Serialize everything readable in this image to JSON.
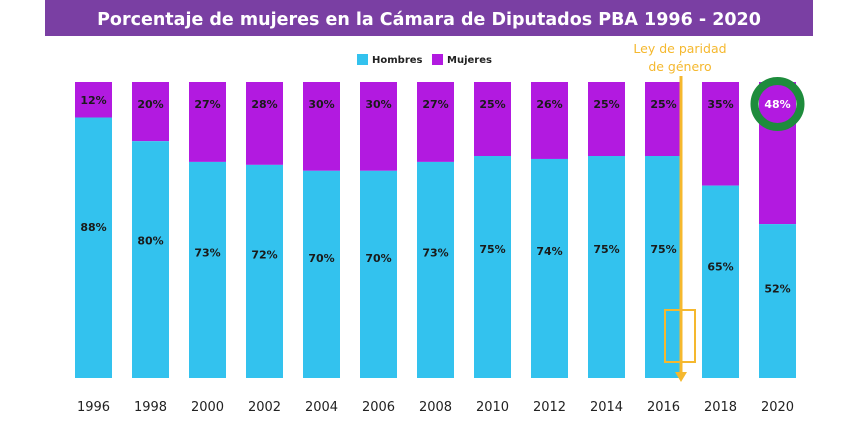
{
  "chart_data": {
    "type": "bar",
    "stacked": true,
    "title": "Porcentaje de mujeres en la Cámara de Diputados PBA 1996 - 2020",
    "categories": [
      "1996",
      "1998",
      "2000",
      "2002",
      "2004",
      "2006",
      "2008",
      "2010",
      "2012",
      "2014",
      "2016",
      "2018",
      "2020"
    ],
    "series": [
      {
        "name": "Hombres",
        "color": "#33c2ee",
        "values": [
          88,
          80,
          73,
          72,
          70,
          70,
          73,
          75,
          74,
          75,
          75,
          65,
          52
        ],
        "labels": [
          "88%",
          "80%",
          "73%",
          "72%",
          "70%",
          "70%",
          "73%",
          "75%",
          "74%",
          "75%",
          "75%",
          "65%",
          "52%"
        ]
      },
      {
        "name": "Mujeres",
        "color": "#b21ae0",
        "values": [
          12,
          20,
          27,
          28,
          30,
          30,
          27,
          25,
          26,
          25,
          25,
          35,
          48
        ],
        "labels": [
          "12%",
          "20%",
          "27%",
          "28%",
          "30%",
          "30%",
          "27%",
          "25%",
          "26%",
          "25%",
          "25%",
          "35%",
          "48%"
        ]
      }
    ],
    "ylim": [
      0,
      100
    ],
    "legend_position": "top-center",
    "grid": false,
    "annotation": {
      "text_lines": [
        "Ley de paridad",
        "de género"
      ],
      "color": "#f5b82e",
      "between_categories": [
        "2016",
        "2018"
      ]
    },
    "highlight": {
      "category": "2020",
      "series": "Mujeres",
      "color": "#1e8c3c"
    }
  },
  "colors": {
    "title_band": "#7a3fa3",
    "title_text": "#ffffff",
    "label_text": "#1a1a1a",
    "highlight_label": "#ffffff"
  }
}
